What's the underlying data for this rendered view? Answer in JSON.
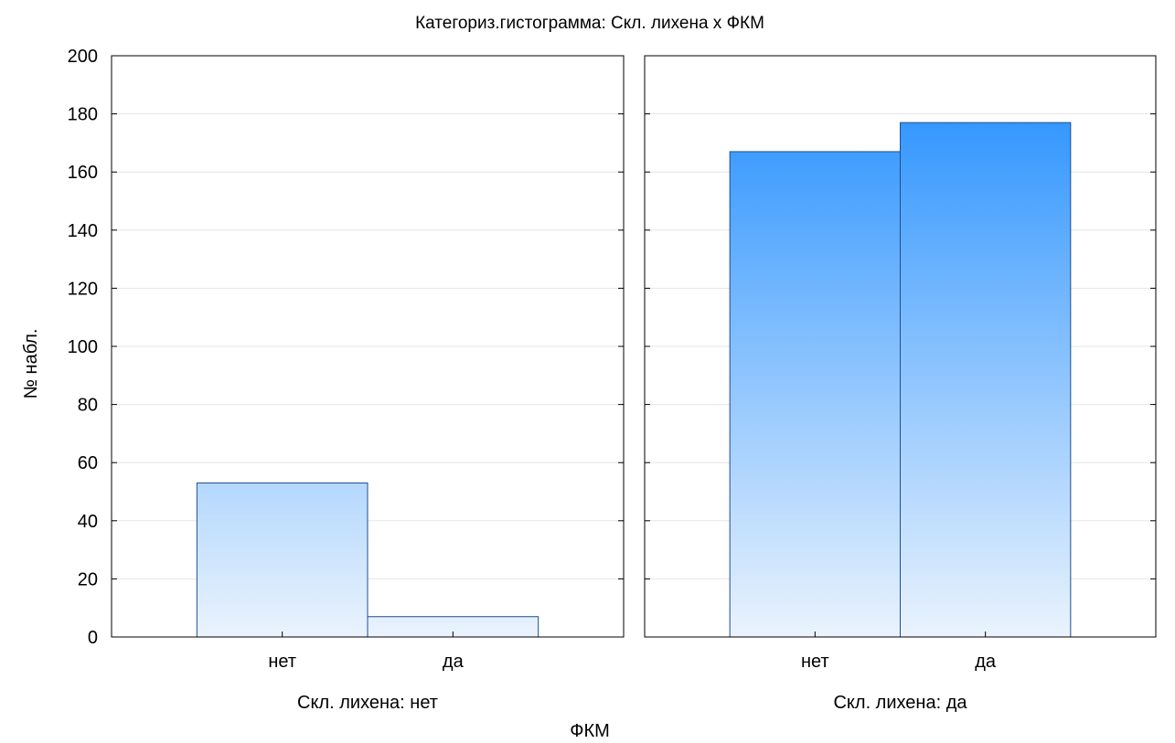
{
  "chart_data": {
    "type": "bar",
    "title": "Категориз.гистограмма: Скл. лихена x ФКМ",
    "ylabel": "№ набл.",
    "xlabel": "ФКМ",
    "ylim": [
      0,
      200
    ],
    "yticks": [
      "0",
      "20",
      "40",
      "60",
      "80",
      "100",
      "120",
      "140",
      "160",
      "180",
      "200"
    ],
    "grid": true,
    "panels": [
      {
        "label": "Скл. лихена: нет",
        "categories": [
          "нет",
          "да"
        ],
        "values": [
          53,
          7
        ]
      },
      {
        "label": "Скл. лихена: да",
        "categories": [
          "нет",
          "да"
        ],
        "values": [
          167,
          177
        ]
      }
    ]
  },
  "colors": {
    "bar_top": "#1e8cff",
    "bar_bottom": "#eaf3fd",
    "bar_stroke": "#1f4d8f",
    "grid": "#e6e6e6",
    "axis": "#000000"
  }
}
